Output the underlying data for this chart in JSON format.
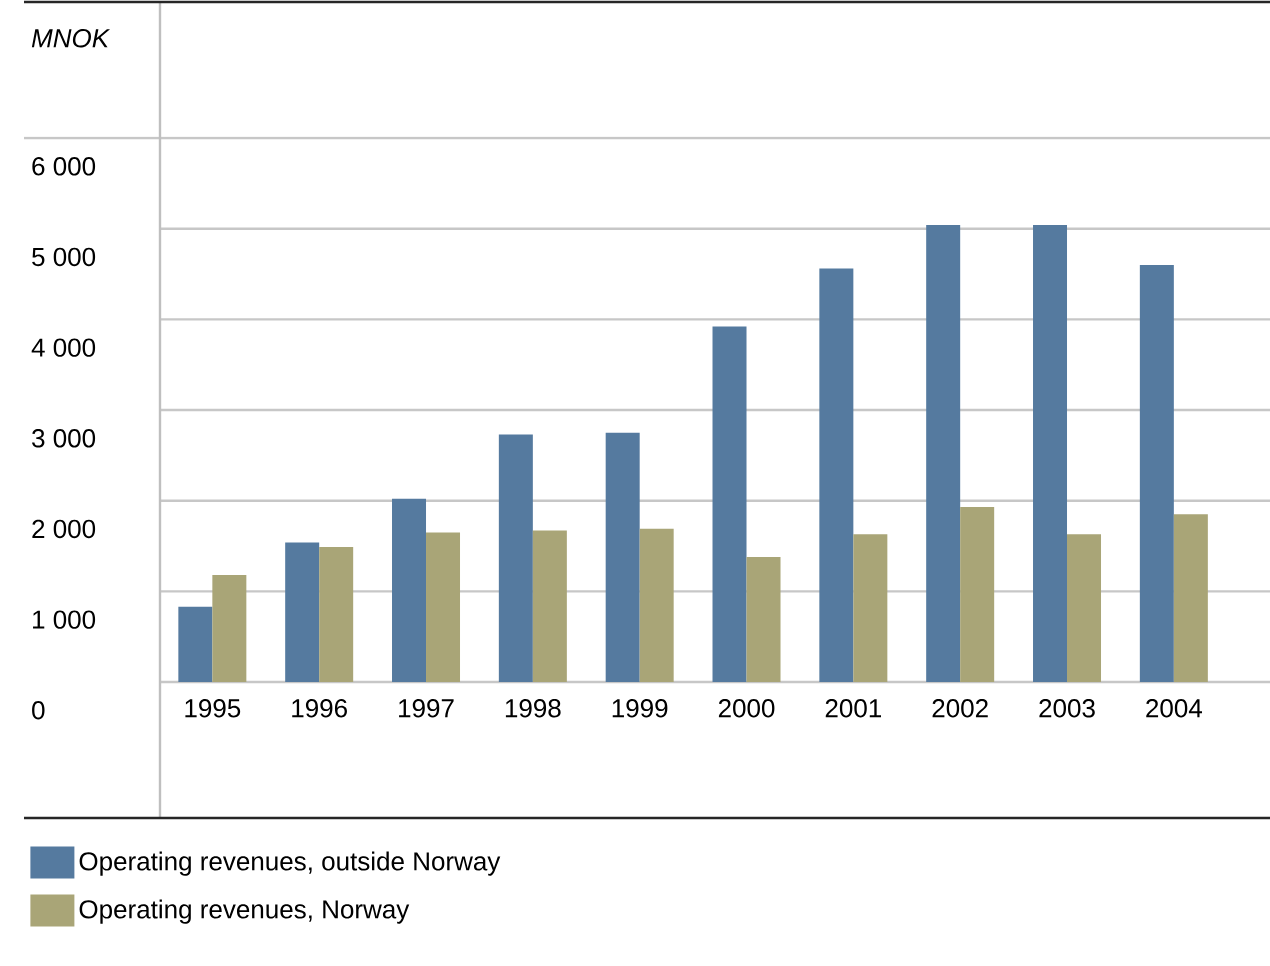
{
  "chart_data": {
    "type": "bar",
    "ylabel": "MNOK",
    "categories": [
      "1995",
      "1996",
      "1997",
      "1998",
      "1999",
      "2000",
      "2001",
      "2002",
      "2003",
      "2004"
    ],
    "series": [
      {
        "name": "Operating revenues, outside Norway",
        "color": "#557a9f",
        "values": [
          830,
          1540,
          2020,
          2730,
          2750,
          3920,
          4560,
          5040,
          5040,
          4600
        ]
      },
      {
        "name": "Operating revenues, Norway",
        "color": "#a9a577",
        "values": [
          1180,
          1490,
          1650,
          1670,
          1690,
          1380,
          1630,
          1930,
          1630,
          1850
        ]
      }
    ],
    "ylim": [
      -1500,
      7500
    ],
    "yticks": [
      0,
      {
        "value": 1000,
        "label": "1 000"
      },
      {
        "value": 2000,
        "label": "2 000"
      },
      {
        "value": 3000,
        "label": "3 000"
      },
      {
        "value": 4000,
        "label": "4 000"
      },
      {
        "value": 5000,
        "label": "5 000"
      },
      {
        "value": 6000,
        "label": "6 000"
      }
    ],
    "grid": "y",
    "legend": "bottom"
  }
}
